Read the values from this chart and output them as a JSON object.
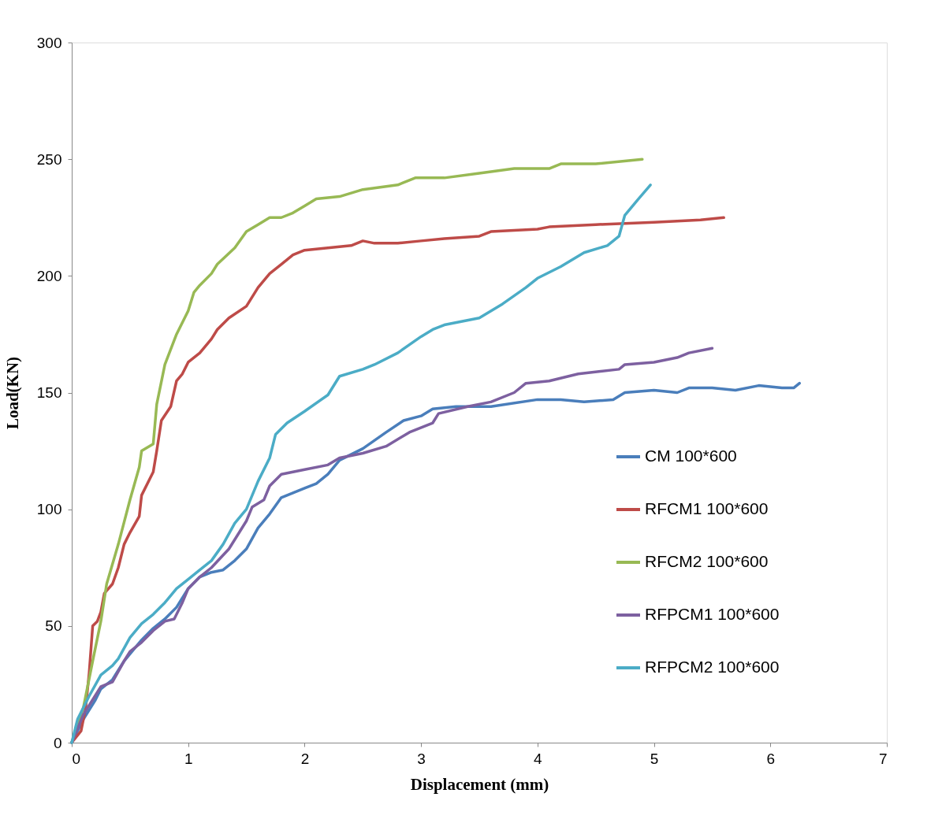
{
  "chart_data": {
    "type": "line",
    "xlabel": "Displacement (mm)",
    "ylabel": "Load(KN)",
    "xlim": [
      0,
      7
    ],
    "xticks": [
      0,
      1,
      2,
      3,
      4,
      5,
      6,
      7
    ],
    "ylim": [
      0,
      300
    ],
    "yticks": [
      0,
      50,
      100,
      150,
      200,
      250,
      300
    ],
    "grid": false,
    "legend": "right",
    "marker": "none",
    "line_style": "solid",
    "series": [
      {
        "name": "CM 100*600",
        "color": "#4a7ebb",
        "x": [
          0,
          0.1,
          0.2,
          0.25,
          0.35,
          0.45,
          0.5,
          0.6,
          0.7,
          0.8,
          0.9,
          1.0,
          1.1,
          1.2,
          1.3,
          1.4,
          1.5,
          1.6,
          1.7,
          1.8,
          1.9,
          2.0,
          2.1,
          2.2,
          2.3,
          2.5,
          2.7,
          2.85,
          3.0,
          3.1,
          3.3,
          3.6,
          4.0,
          4.2,
          4.4,
          4.65,
          4.75,
          5.0,
          5.2,
          5.3,
          5.5,
          5.7,
          5.9,
          6.1,
          6.2,
          6.25
        ],
        "values": [
          0,
          10,
          18,
          23,
          27,
          35,
          38,
          44,
          49,
          53,
          58,
          66,
          71,
          73,
          74,
          78,
          83,
          92,
          98,
          105,
          107,
          109,
          111,
          115,
          121,
          126,
          133,
          138,
          140,
          143,
          144,
          144,
          147,
          147,
          146,
          147,
          150,
          151,
          150,
          152,
          152,
          151,
          153,
          152,
          152,
          154
        ]
      },
      {
        "name": "RFCM1 100*600",
        "color": "#be4b48",
        "x": [
          0,
          0.08,
          0.12,
          0.15,
          0.18,
          0.22,
          0.25,
          0.28,
          0.35,
          0.4,
          0.45,
          0.5,
          0.58,
          0.6,
          0.7,
          0.73,
          0.77,
          0.85,
          0.9,
          0.95,
          1.0,
          1.1,
          1.2,
          1.25,
          1.35,
          1.5,
          1.6,
          1.7,
          1.8,
          1.9,
          2.0,
          2.2,
          2.4,
          2.5,
          2.6,
          2.8,
          3.0,
          3.2,
          3.5,
          3.6,
          4.0,
          4.1,
          4.5,
          5.0,
          5.4,
          5.6
        ],
        "values": [
          0,
          5,
          15,
          30,
          50,
          52,
          56,
          64,
          68,
          75,
          85,
          90,
          97,
          106,
          116,
          125,
          138,
          144,
          155,
          158,
          163,
          167,
          173,
          177,
          182,
          187,
          195,
          201,
          205,
          209,
          211,
          212,
          213,
          215,
          214,
          214,
          215,
          216,
          217,
          219,
          220,
          221,
          222,
          223,
          224,
          225
        ]
      },
      {
        "name": "RFCM2 100*600",
        "color": "#98b954",
        "x": [
          0,
          0.1,
          0.18,
          0.25,
          0.3,
          0.4,
          0.5,
          0.58,
          0.6,
          0.7,
          0.73,
          0.8,
          0.9,
          1.0,
          1.05,
          1.1,
          1.2,
          1.25,
          1.4,
          1.5,
          1.6,
          1.7,
          1.8,
          1.9,
          2.0,
          2.1,
          2.3,
          2.5,
          2.8,
          2.95,
          3.2,
          3.5,
          3.8,
          4.1,
          4.2,
          4.5,
          4.9
        ],
        "values": [
          0,
          15,
          35,
          52,
          68,
          85,
          104,
          118,
          125,
          128,
          145,
          162,
          175,
          185,
          193,
          196,
          201,
          205,
          212,
          219,
          222,
          225,
          225,
          227,
          230,
          233,
          234,
          237,
          239,
          242,
          242,
          244,
          246,
          246,
          248,
          248,
          250
        ]
      },
      {
        "name": "RFPCM1 100*600",
        "color": "#7d60a0",
        "x": [
          0,
          0.1,
          0.2,
          0.25,
          0.35,
          0.45,
          0.5,
          0.6,
          0.7,
          0.8,
          0.88,
          0.95,
          1.0,
          1.1,
          1.2,
          1.35,
          1.5,
          1.55,
          1.65,
          1.7,
          1.8,
          2.0,
          2.2,
          2.3,
          2.5,
          2.7,
          2.9,
          3.1,
          3.15,
          3.4,
          3.6,
          3.8,
          3.9,
          4.1,
          4.35,
          4.7,
          4.75,
          5.0,
          5.2,
          5.3,
          5.5
        ],
        "values": [
          0,
          12,
          20,
          24,
          26,
          35,
          39,
          43,
          48,
          52,
          53,
          60,
          66,
          71,
          75,
          83,
          95,
          101,
          104,
          110,
          115,
          117,
          119,
          122,
          124,
          127,
          133,
          137,
          141,
          144,
          146,
          150,
          154,
          155,
          158,
          160,
          162,
          163,
          165,
          167,
          169
        ]
      },
      {
        "name": "RFPCM2 100*600",
        "color": "#4bacc6",
        "x": [
          0,
          0.05,
          0.15,
          0.25,
          0.35,
          0.4,
          0.5,
          0.6,
          0.7,
          0.8,
          0.9,
          1.0,
          1.1,
          1.2,
          1.3,
          1.4,
          1.5,
          1.6,
          1.7,
          1.75,
          1.85,
          2.0,
          2.2,
          2.3,
          2.5,
          2.6,
          2.8,
          3.0,
          3.1,
          3.2,
          3.5,
          3.7,
          3.9,
          4.0,
          4.2,
          4.4,
          4.6,
          4.7,
          4.75,
          4.85,
          4.97
        ],
        "values": [
          0,
          10,
          20,
          29,
          33,
          36,
          45,
          51,
          55,
          60,
          66,
          70,
          74,
          78,
          85,
          94,
          100,
          112,
          122,
          132,
          137,
          142,
          149,
          157,
          160,
          162,
          167,
          174,
          177,
          179,
          182,
          188,
          195,
          199,
          204,
          210,
          213,
          217,
          226,
          232,
          239
        ]
      }
    ]
  }
}
